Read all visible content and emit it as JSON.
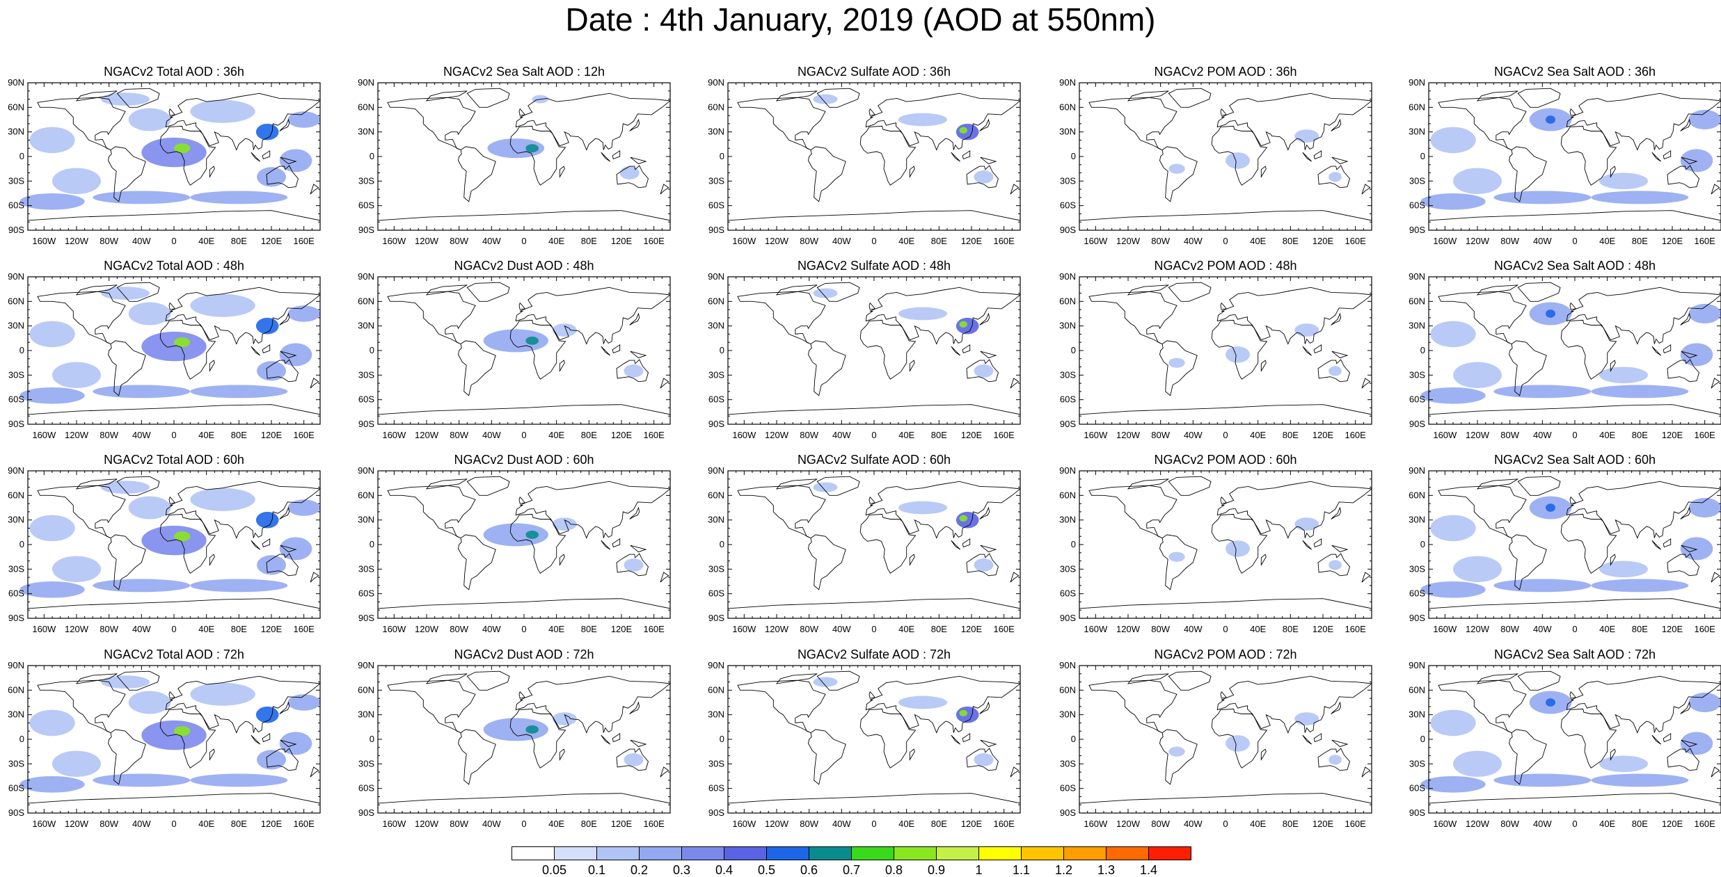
{
  "title": "Date : 4th January, 2019 (AOD at 550nm)",
  "lat_labels": [
    "90N",
    "60N",
    "30N",
    "0",
    "30S",
    "60S",
    "90S"
  ],
  "lon_labels": [
    "160W",
    "120W",
    "80W",
    "40W",
    "0",
    "40E",
    "80E",
    "120E",
    "160E"
  ],
  "rows": [
    [
      "NGACv2 Total AOD : 36h",
      "NGACv2 Sea Salt  AOD : 12h",
      "NGACv2 Sulfate AOD : 36h",
      "NGACv2 POM AOD : 36h",
      "NGACv2 Sea Salt AOD : 36h"
    ],
    [
      "NGACv2 Total AOD : 48h",
      "NGACv2 Dust AOD : 48h",
      "NGACv2 Sulfate AOD : 48h",
      "NGACv2 POM AOD : 48h",
      "NGACv2 Sea Salt AOD : 48h"
    ],
    [
      "NGACv2 Total AOD : 60h",
      "NGACv2 Dust AOD : 60h",
      "NGACv2 Sulfate AOD : 60h",
      "NGACv2 POM AOD : 60h",
      "NGACv2 Sea Salt AOD : 60h"
    ],
    [
      "NGACv2 Total AOD : 72h",
      "NGACv2 Dust AOD : 72h",
      "NGACv2 Sulfate AOD : 72h",
      "NGACv2 POM AOD : 72h",
      "NGACv2 Sea Salt  AOD : 72h"
    ]
  ],
  "colorbar": {
    "labels": [
      "0.05",
      "0.1",
      "0.2",
      "0.3",
      "0.4",
      "0.5",
      "0.6",
      "0.7",
      "0.8",
      "0.9",
      "1",
      "1.1",
      "1.2",
      "1.3",
      "1.4"
    ],
    "colors": [
      "#ffffff",
      "#d3dffb",
      "#b1c4f6",
      "#93a8f1",
      "#7c89ec",
      "#5a63e3",
      "#1e66e8",
      "#0a8c8f",
      "#3ad91c",
      "#8ae61f",
      "#c4ef47",
      "#ffff00",
      "#ffc400",
      "#ff9c00",
      "#ff6a00",
      "#ff1e00"
    ]
  },
  "fields": {
    "total": [
      [
        -150,
        20,
        28,
        16,
        0.15
      ],
      [
        -120,
        -30,
        30,
        16,
        0.15
      ],
      [
        -30,
        45,
        26,
        14,
        0.15
      ],
      [
        60,
        55,
        40,
        14,
        0.15
      ],
      [
        0,
        5,
        40,
        18,
        0.3
      ],
      [
        10,
        10,
        10,
        6,
        0.8
      ],
      [
        115,
        30,
        14,
        10,
        0.5
      ],
      [
        120,
        -25,
        18,
        12,
        0.2
      ],
      [
        -40,
        -50,
        60,
        8,
        0.2
      ],
      [
        80,
        -50,
        60,
        8,
        0.2
      ],
      [
        -150,
        -55,
        40,
        10,
        0.2
      ],
      [
        150,
        -5,
        20,
        14,
        0.2
      ],
      [
        -60,
        70,
        30,
        8,
        0.15
      ],
      [
        160,
        45,
        20,
        10,
        0.2
      ]
    ],
    "seasalt12": [
      [
        -10,
        10,
        35,
        12,
        0.2
      ],
      [
        10,
        10,
        8,
        5,
        0.6
      ],
      [
        130,
        -20,
        12,
        8,
        0.15
      ],
      [
        20,
        70,
        10,
        5,
        0.1
      ]
    ],
    "dust": [
      [
        -10,
        12,
        40,
        14,
        0.25
      ],
      [
        10,
        12,
        8,
        5,
        0.6
      ],
      [
        135,
        -25,
        12,
        8,
        0.15
      ],
      [
        50,
        25,
        15,
        8,
        0.1
      ]
    ],
    "sulfate": [
      [
        115,
        30,
        14,
        10,
        0.4
      ],
      [
        110,
        32,
        5,
        4,
        0.8
      ],
      [
        60,
        45,
        30,
        8,
        0.1
      ],
      [
        -60,
        70,
        15,
        6,
        0.1
      ],
      [
        135,
        -25,
        12,
        8,
        0.1
      ]
    ],
    "pom": [
      [
        100,
        25,
        15,
        8,
        0.15
      ],
      [
        15,
        -5,
        15,
        10,
        0.15
      ],
      [
        135,
        -25,
        8,
        6,
        0.15
      ],
      [
        -60,
        -15,
        10,
        6,
        0.1
      ]
    ],
    "seasalt": [
      [
        -150,
        20,
        28,
        16,
        0.15
      ],
      [
        -120,
        -30,
        30,
        16,
        0.15
      ],
      [
        -30,
        45,
        26,
        14,
        0.2
      ],
      [
        160,
        45,
        20,
        12,
        0.2
      ],
      [
        -40,
        -50,
        60,
        8,
        0.2
      ],
      [
        80,
        -50,
        60,
        8,
        0.2
      ],
      [
        -150,
        -55,
        40,
        10,
        0.2
      ],
      [
        150,
        -5,
        20,
        14,
        0.2
      ],
      [
        -30,
        45,
        6,
        5,
        0.5
      ],
      [
        60,
        -30,
        30,
        10,
        0.1
      ]
    ]
  },
  "panel_fields": [
    [
      "total",
      "seasalt12",
      "sulfate",
      "pom",
      "seasalt"
    ],
    [
      "total",
      "dust",
      "sulfate",
      "pom",
      "seasalt"
    ],
    [
      "total",
      "dust",
      "sulfate",
      "pom",
      "seasalt"
    ],
    [
      "total",
      "dust",
      "sulfate",
      "pom",
      "seasalt"
    ]
  ],
  "land_polygons": [
    [
      [
        -168,
        66
      ],
      [
        -140,
        70
      ],
      [
        -95,
        72
      ],
      [
        -80,
        70
      ],
      [
        -75,
        60
      ],
      [
        -60,
        55
      ],
      [
        -66,
        44
      ],
      [
        -75,
        36
      ],
      [
        -81,
        27
      ],
      [
        -82,
        30
      ],
      [
        -90,
        30
      ],
      [
        -97,
        26
      ],
      [
        -97,
        20
      ],
      [
        -88,
        21
      ],
      [
        -83,
        10
      ],
      [
        -78,
        8
      ],
      [
        -90,
        14
      ],
      [
        -105,
        20
      ],
      [
        -112,
        30
      ],
      [
        -117,
        33
      ],
      [
        -124,
        40
      ],
      [
        -124,
        48
      ],
      [
        -134,
        58
      ],
      [
        -150,
        60
      ],
      [
        -165,
        60
      ]
    ],
    [
      [
        -78,
        8
      ],
      [
        -72,
        12
      ],
      [
        -60,
        10
      ],
      [
        -50,
        0
      ],
      [
        -35,
        -6
      ],
      [
        -40,
        -22
      ],
      [
        -48,
        -28
      ],
      [
        -58,
        -38
      ],
      [
        -65,
        -42
      ],
      [
        -68,
        -55
      ],
      [
        -74,
        -50
      ],
      [
        -73,
        -35
      ],
      [
        -71,
        -18
      ],
      [
        -76,
        -14
      ],
      [
        -81,
        -5
      ],
      [
        -80,
        0
      ],
      [
        -77,
        3
      ]
    ],
    [
      [
        -10,
        36
      ],
      [
        -9,
        43
      ],
      [
        -2,
        48
      ],
      [
        -5,
        48
      ],
      [
        2,
        51
      ],
      [
        10,
        54
      ],
      [
        8,
        57
      ],
      [
        5,
        62
      ],
      [
        15,
        69
      ],
      [
        28,
        71
      ],
      [
        40,
        67
      ],
      [
        60,
        69
      ],
      [
        80,
        73
      ],
      [
        105,
        77
      ],
      [
        130,
        71
      ],
      [
        160,
        70
      ],
      [
        180,
        68
      ],
      [
        170,
        60
      ],
      [
        157,
        51
      ],
      [
        140,
        52
      ],
      [
        135,
        43
      ],
      [
        128,
        38
      ],
      [
        122,
        40
      ],
      [
        121,
        31
      ],
      [
        118,
        24
      ],
      [
        109,
        20
      ],
      [
        108,
        11
      ],
      [
        104,
        9
      ],
      [
        100,
        14
      ],
      [
        98,
        8
      ],
      [
        97,
        17
      ],
      [
        92,
        21
      ],
      [
        88,
        22
      ],
      [
        80,
        15
      ],
      [
        77,
        8
      ],
      [
        72,
        20
      ],
      [
        67,
        24
      ],
      [
        57,
        25
      ],
      [
        56,
        27
      ],
      [
        50,
        30
      ],
      [
        55,
        17
      ],
      [
        44,
        13
      ],
      [
        35,
        28
      ],
      [
        33,
        31
      ],
      [
        27,
        37
      ],
      [
        27,
        41
      ],
      [
        22,
        40
      ],
      [
        15,
        38
      ],
      [
        12,
        44
      ],
      [
        5,
        43
      ],
      [
        0,
        39
      ]
    ],
    [
      [
        -17,
        15
      ],
      [
        -16,
        24
      ],
      [
        -9,
        31
      ],
      [
        -6,
        36
      ],
      [
        10,
        37
      ],
      [
        11,
        33
      ],
      [
        20,
        31
      ],
      [
        32,
        31
      ],
      [
        35,
        28
      ],
      [
        43,
        12
      ],
      [
        51,
        11
      ],
      [
        40,
        -3
      ],
      [
        40,
        -15
      ],
      [
        33,
        -26
      ],
      [
        20,
        -35
      ],
      [
        17,
        -30
      ],
      [
        12,
        -15
      ],
      [
        13,
        -6
      ],
      [
        9,
        4
      ],
      [
        3,
        6
      ],
      [
        -8,
        4
      ],
      [
        -13,
        8
      ]
    ],
    [
      [
        114,
        -22
      ],
      [
        123,
        -16
      ],
      [
        130,
        -12
      ],
      [
        136,
        -12
      ],
      [
        137,
        -16
      ],
      [
        142,
        -11
      ],
      [
        146,
        -19
      ],
      [
        153,
        -27
      ],
      [
        150,
        -37
      ],
      [
        141,
        -38
      ],
      [
        135,
        -34
      ],
      [
        129,
        -32
      ],
      [
        115,
        -34
      ]
    ],
    [
      [
        -55,
        60
      ],
      [
        -45,
        60
      ],
      [
        -20,
        70
      ],
      [
        -18,
        77
      ],
      [
        -30,
        83
      ],
      [
        -60,
        82
      ],
      [
        -70,
        77
      ]
    ],
    [
      [
        -180,
        -78
      ],
      [
        -120,
        -74
      ],
      [
        -60,
        -72
      ],
      [
        0,
        -70
      ],
      [
        60,
        -67
      ],
      [
        120,
        -66
      ],
      [
        180,
        -78
      ],
      [
        180,
        -90
      ],
      [
        -180,
        -90
      ]
    ],
    [
      [
        -5,
        50
      ],
      [
        1,
        51
      ],
      [
        -3,
        56
      ],
      [
        -5,
        58
      ],
      [
        -6,
        55
      ]
    ],
    [
      [
        130,
        31
      ],
      [
        135,
        34
      ],
      [
        140,
        36
      ],
      [
        142,
        40
      ],
      [
        141,
        45
      ],
      [
        138,
        38
      ],
      [
        132,
        33
      ]
    ],
    [
      [
        95,
        5
      ],
      [
        106,
        -6
      ],
      [
        100,
        -2
      ]
    ],
    [
      [
        109,
        1
      ],
      [
        118,
        7
      ],
      [
        118,
        0
      ],
      [
        110,
        -3
      ]
    ],
    [
      [
        131,
        -1
      ],
      [
        150,
        -6
      ],
      [
        141,
        -9
      ]
    ],
    [
      [
        44,
        -25
      ],
      [
        50,
        -15
      ],
      [
        49,
        -12
      ],
      [
        44,
        -16
      ]
    ],
    [
      [
        -120,
        68
      ],
      [
        -80,
        74
      ],
      [
        -70,
        80
      ],
      [
        -100,
        78
      ],
      [
        -115,
        74
      ]
    ],
    [
      [
        172,
        -42
      ],
      [
        178,
        -38
      ],
      [
        172,
        -34
      ],
      [
        168,
        -46
      ]
    ]
  ]
}
